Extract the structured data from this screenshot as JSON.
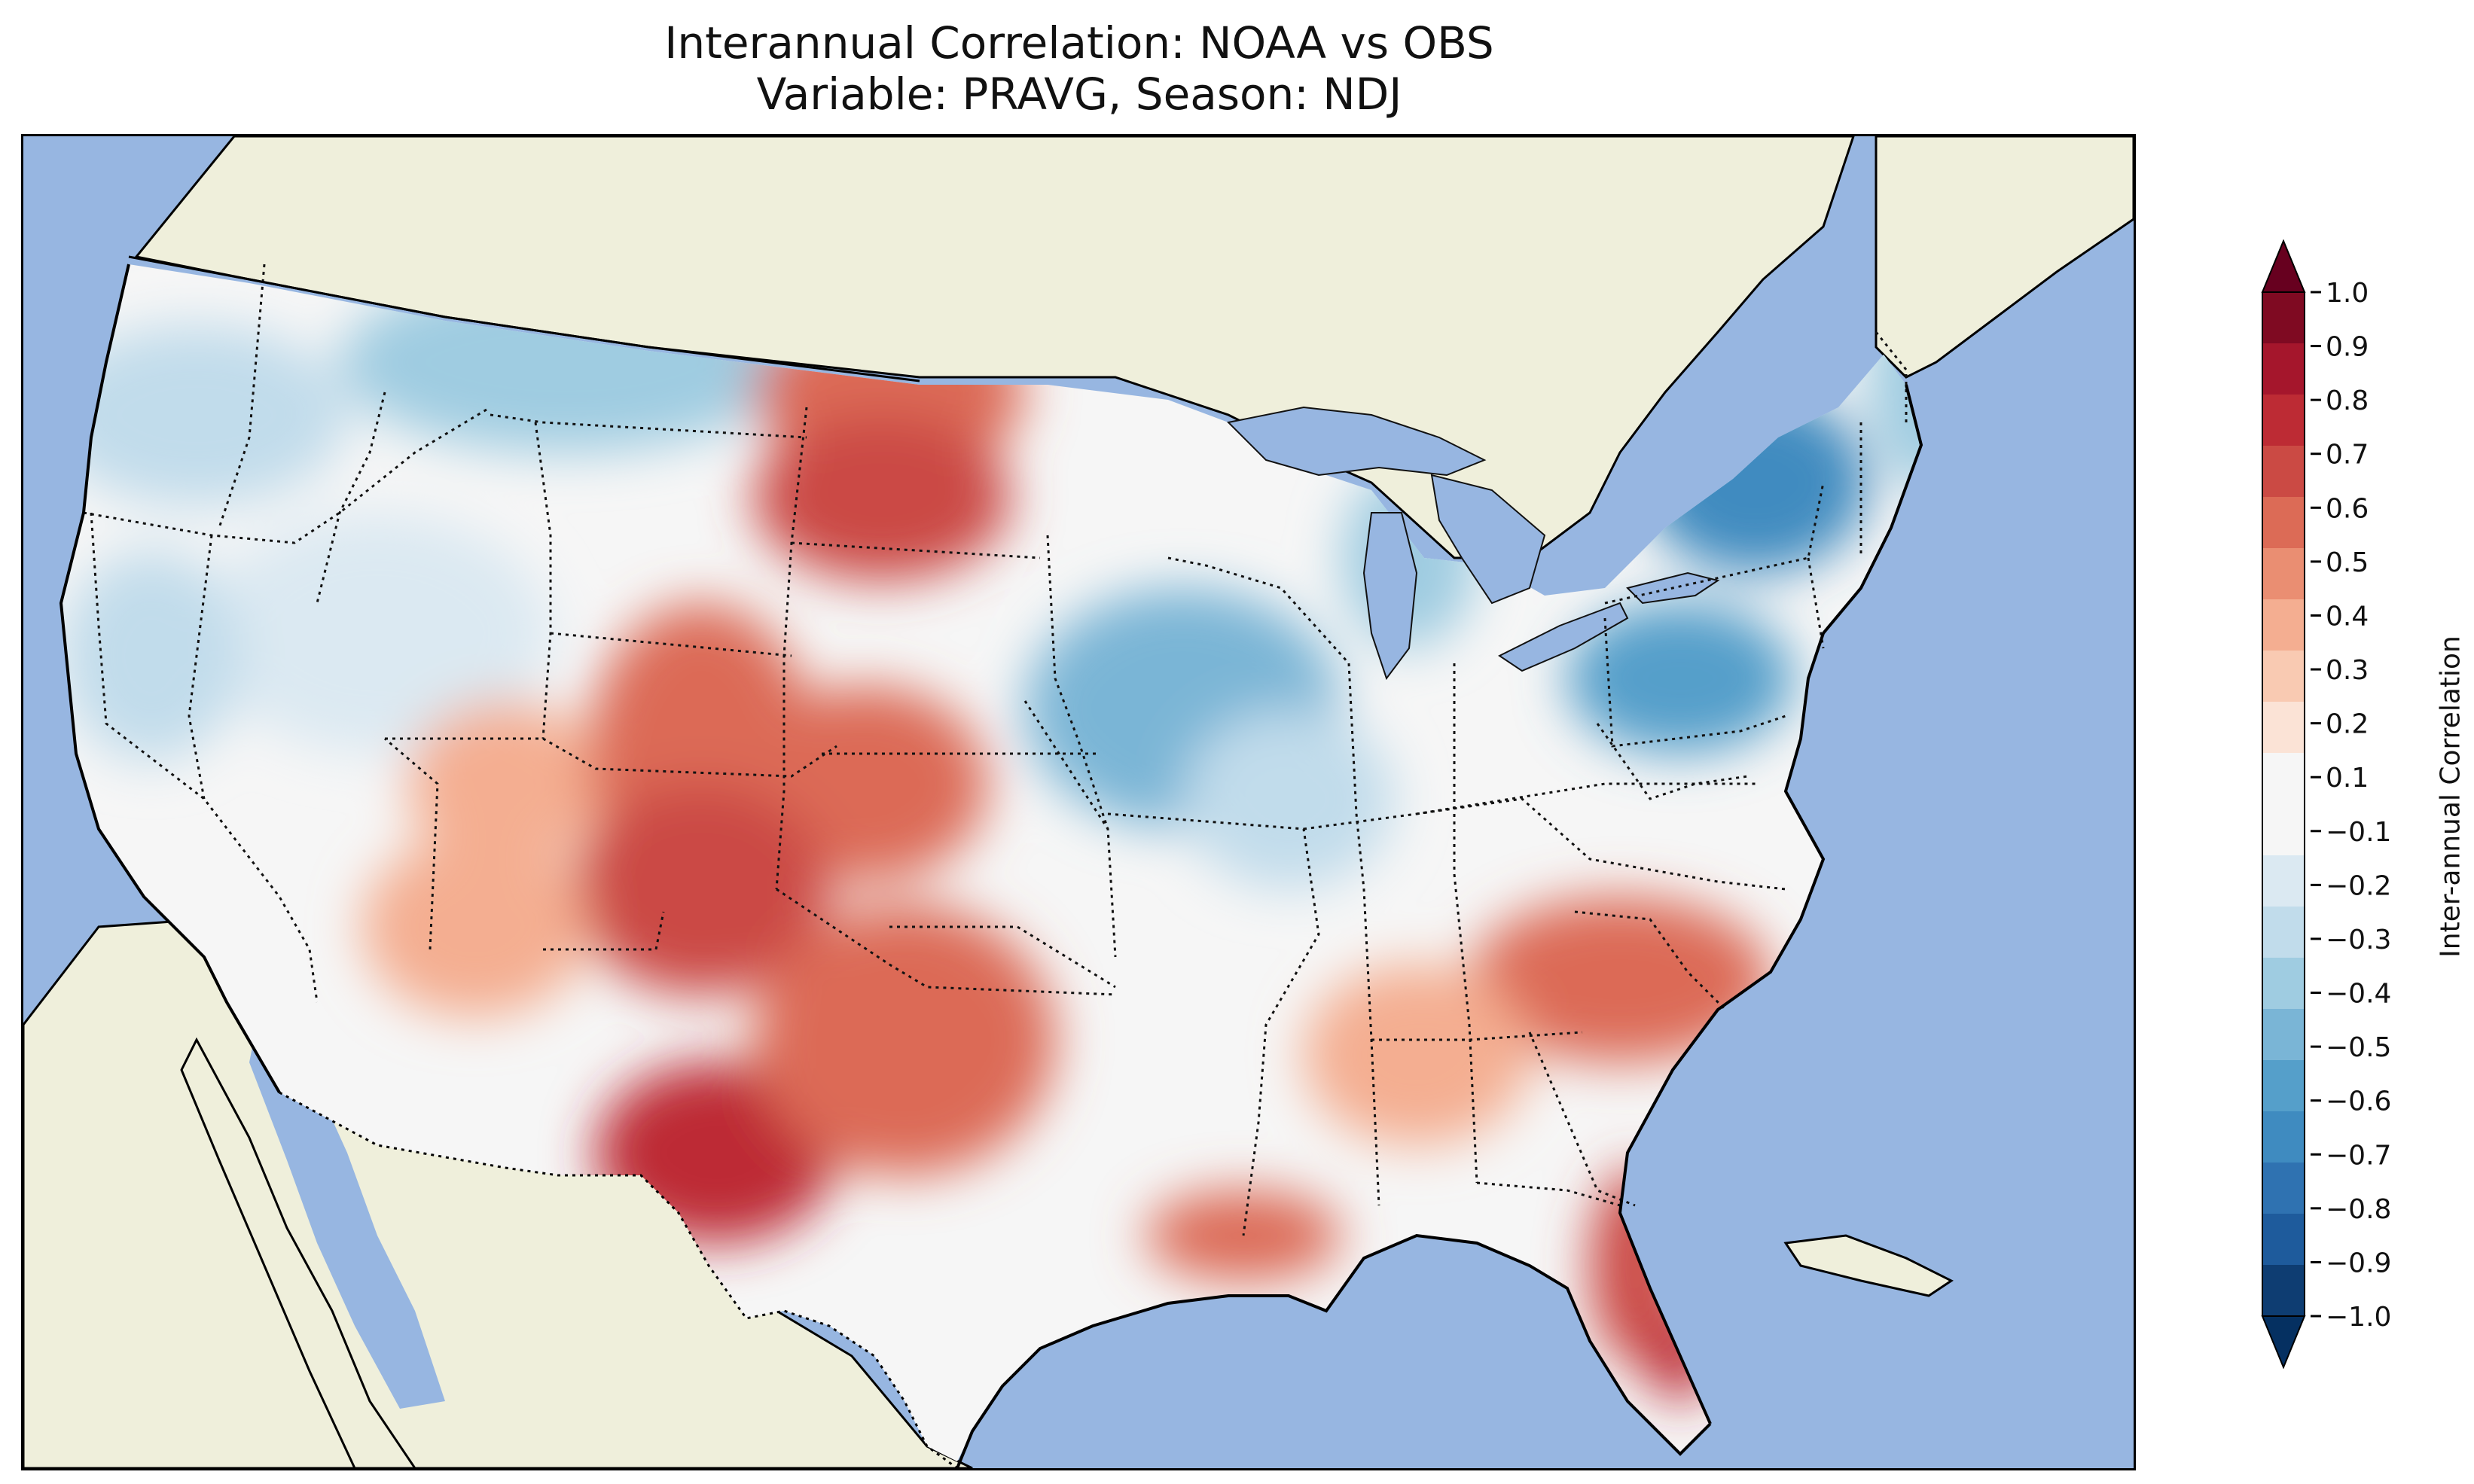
{
  "title": {
    "line1": "Interannual Correlation: NOAA vs OBS",
    "line2": "Variable: PRAVG, Season: NDJ"
  },
  "colorbar": {
    "label": "Inter-annual Correlation",
    "ticks": [
      "1.0",
      "0.9",
      "0.8",
      "0.7",
      "0.6",
      "0.5",
      "0.4",
      "0.3",
      "0.2",
      "0.1",
      "−0.1",
      "−0.2",
      "−0.3",
      "−0.4",
      "−0.5",
      "−0.6",
      "−0.7",
      "−0.8",
      "−0.9",
      "−1.0"
    ],
    "levels": [
      {
        "min": 0.9,
        "max": 1.0,
        "color": "#7f0a22"
      },
      {
        "min": 0.8,
        "max": 0.9,
        "color": "#a5162c"
      },
      {
        "min": 0.7,
        "max": 0.8,
        "color": "#bd2b34"
      },
      {
        "min": 0.6,
        "max": 0.7,
        "color": "#cb4a44"
      },
      {
        "min": 0.5,
        "max": 0.6,
        "color": "#dc6b56"
      },
      {
        "min": 0.4,
        "max": 0.5,
        "color": "#ea8e72"
      },
      {
        "min": 0.3,
        "max": 0.4,
        "color": "#f4ae91"
      },
      {
        "min": 0.2,
        "max": 0.3,
        "color": "#f9cab2"
      },
      {
        "min": 0.1,
        "max": 0.2,
        "color": "#fbe3d6"
      },
      {
        "min": -0.1,
        "max": 0.1,
        "color": "#f6f6f6"
      },
      {
        "min": -0.2,
        "max": -0.1,
        "color": "#dbe9f2"
      },
      {
        "min": -0.3,
        "max": -0.2,
        "color": "#c1dceb"
      },
      {
        "min": -0.4,
        "max": -0.3,
        "color": "#9fcce1"
      },
      {
        "min": -0.5,
        "max": -0.4,
        "color": "#7ab5d6"
      },
      {
        "min": -0.6,
        "max": -0.5,
        "color": "#559fca"
      },
      {
        "min": -0.7,
        "max": -0.6,
        "color": "#3f8bc0"
      },
      {
        "min": -0.8,
        "max": -0.7,
        "color": "#2f72b1"
      },
      {
        "min": -0.9,
        "max": -0.8,
        "color": "#1e5b9c"
      },
      {
        "min": -1.0,
        "max": -0.9,
        "color": "#0e3d72"
      }
    ],
    "extend_high_color": "#67001f",
    "extend_low_color": "#053061"
  },
  "map": {
    "ocean_color": "#97b6e1",
    "land_color": "#efefdb",
    "lake_color": "#97b6e1"
  },
  "regions": [
    {
      "name": "pacific-northwest",
      "value": -0.3
    },
    {
      "name": "idaho-montana",
      "value": -0.4
    },
    {
      "name": "north-dakota",
      "value": 0.55
    },
    {
      "name": "south-dakota",
      "value": 0.6
    },
    {
      "name": "great-basin",
      "value": -0.2
    },
    {
      "name": "northern-california",
      "value": -0.3
    },
    {
      "name": "utah",
      "value": 0.3
    },
    {
      "name": "colorado",
      "value": 0.5
    },
    {
      "name": "kansas",
      "value": 0.55
    },
    {
      "name": "new-mexico",
      "value": 0.6
    },
    {
      "name": "arizona",
      "value": 0.3
    },
    {
      "name": "west-texas",
      "value": 0.7
    },
    {
      "name": "central-texas",
      "value": 0.55
    },
    {
      "name": "iowa-missouri",
      "value": -0.45
    },
    {
      "name": "illinois-indiana",
      "value": -0.3
    },
    {
      "name": "michigan",
      "value": -0.4
    },
    {
      "name": "pennsylvania",
      "value": -0.55
    },
    {
      "name": "new-york",
      "value": -0.65
    },
    {
      "name": "new-england",
      "value": -0.4
    },
    {
      "name": "carolinas-georgia",
      "value": 0.5
    },
    {
      "name": "alabama-mississippi",
      "value": 0.3
    },
    {
      "name": "louisiana-coast",
      "value": 0.55
    },
    {
      "name": "florida",
      "value": 0.65
    },
    {
      "name": "south-florida",
      "value": 0.75
    }
  ]
}
